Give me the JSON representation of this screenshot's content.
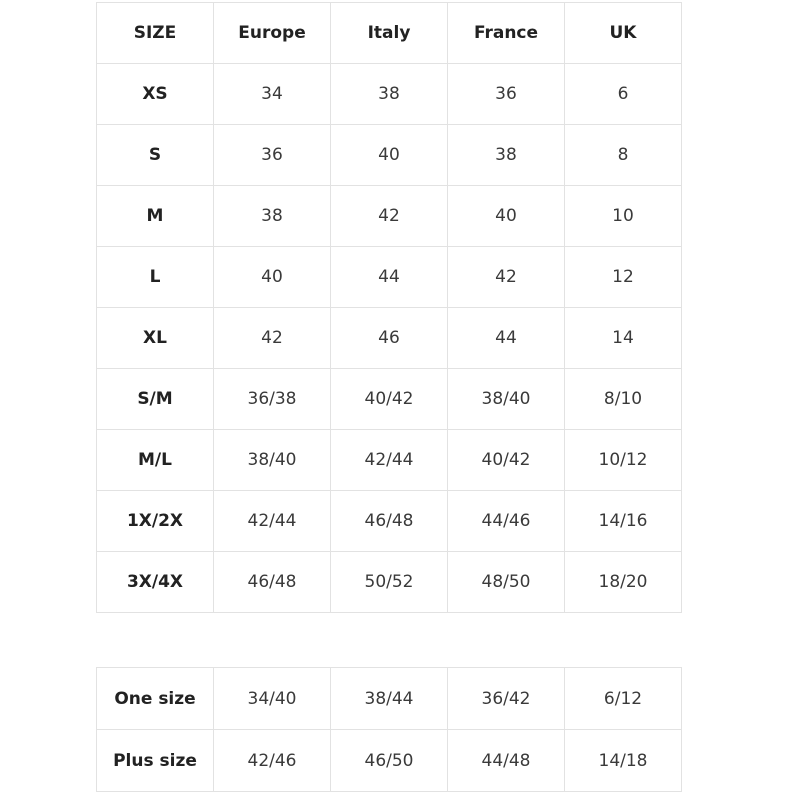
{
  "size_table": {
    "header": [
      "SIZE",
      "Europe",
      "Italy",
      "France",
      "UK"
    ],
    "rows": [
      [
        "XS",
        "34",
        "38",
        "36",
        "6"
      ],
      [
        "S",
        "36",
        "40",
        "38",
        "8"
      ],
      [
        "M",
        "38",
        "42",
        "40",
        "10"
      ],
      [
        "L",
        "40",
        "44",
        "42",
        "12"
      ],
      [
        "XL",
        "42",
        "46",
        "44",
        "14"
      ],
      [
        "S/M",
        "36/38",
        "40/42",
        "38/40",
        "8/10"
      ],
      [
        "M/L",
        "38/40",
        "42/44",
        "40/42",
        "10/12"
      ],
      [
        "1X/2X",
        "42/44",
        "46/48",
        "44/46",
        "14/16"
      ],
      [
        "3X/4X",
        "46/48",
        "50/52",
        "48/50",
        "18/20"
      ]
    ]
  },
  "special_table": {
    "rows": [
      [
        "One size",
        "34/40",
        "38/44",
        "36/42",
        "6/12"
      ],
      [
        "Plus size",
        "42/46",
        "46/50",
        "44/48",
        "14/18"
      ]
    ]
  }
}
